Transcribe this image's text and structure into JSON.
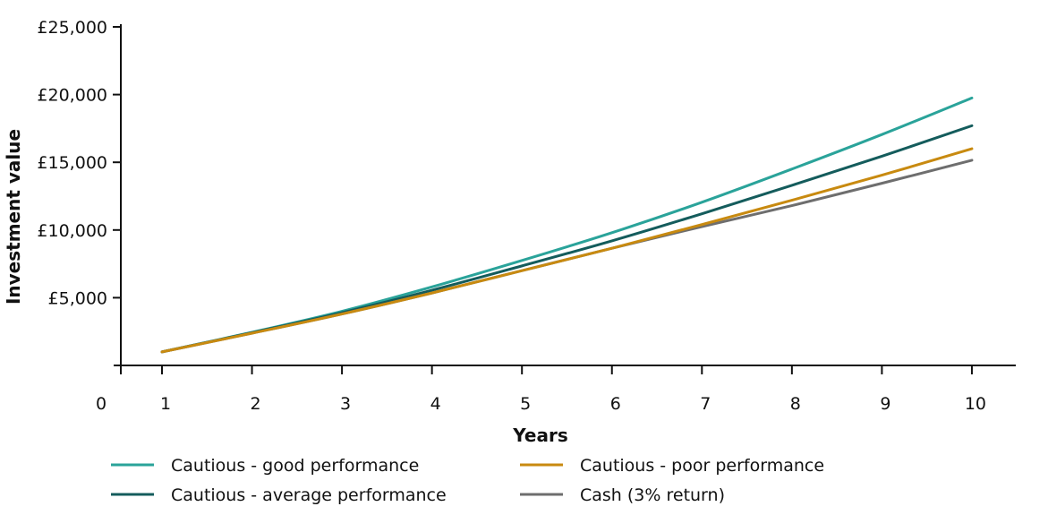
{
  "chart_data": {
    "type": "line",
    "title": "",
    "xlabel": "Years",
    "ylabel": "Investment value",
    "x": [
      1,
      2,
      3,
      4,
      5,
      6,
      7,
      8,
      9,
      10
    ],
    "x_ticks": [
      "0",
      "1",
      "2",
      "3",
      "4",
      "5",
      "6",
      "7",
      "8",
      "9",
      "10"
    ],
    "y_ticks": [
      "£5,000",
      "£10,000",
      "£15,000",
      "£20,000",
      "£25,000"
    ],
    "ylim": [
      0,
      25000
    ],
    "xlim": [
      0.55,
      10.5
    ],
    "grid": false,
    "legend_position": "bottom",
    "series": [
      {
        "name": "Cautious - good performance",
        "color": "#2aa39a",
        "values": [
          1000,
          2450,
          4000,
          5800,
          7750,
          9800,
          12050,
          14500,
          17050,
          19750
        ]
      },
      {
        "name": "Cautious - average performance",
        "color": "#145c5c",
        "values": [
          1000,
          2420,
          3900,
          5550,
          7350,
          9200,
          11200,
          13300,
          15450,
          17700
        ]
      },
      {
        "name": "Cautious - poor performance",
        "color": "#c88a10",
        "values": [
          1000,
          2380,
          3800,
          5350,
          7000,
          8650,
          10400,
          12200,
          14050,
          16000
        ]
      },
      {
        "name": "Cash (3% return)",
        "color": "#6e6e6e",
        "values": [
          1000,
          2380,
          3800,
          5350,
          7000,
          8650,
          10250,
          11800,
          13450,
          15150
        ]
      }
    ]
  }
}
